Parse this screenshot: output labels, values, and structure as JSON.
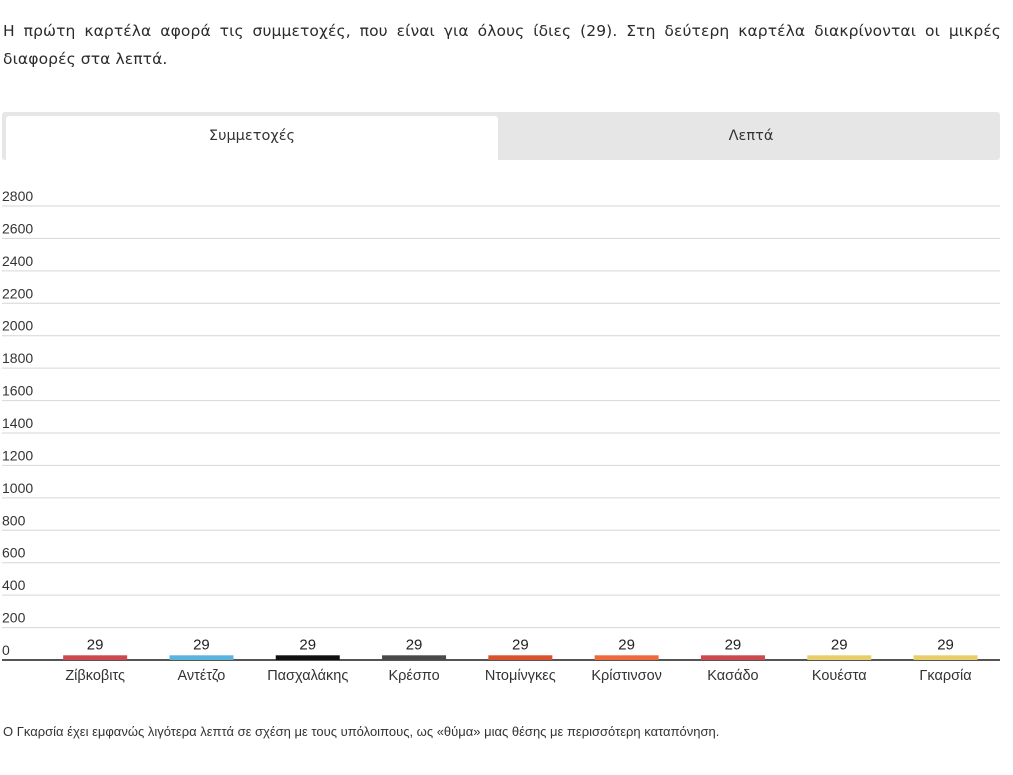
{
  "intro_text": "Η πρώτη καρτέλα αφορά τις συμμετοχές, που είναι για όλους ίδιες (29). Στη δεύτερη καρτέλα διακρίνονται οι μικρές διαφορές στα λεπτά.",
  "tabs": [
    {
      "label": "Συμμετοχές",
      "active": true
    },
    {
      "label": "Λεπτά",
      "active": false
    }
  ],
  "footer_text": "Ο Γκαρσία έχει εμφανώς λιγότερα λεπτά σε σχέση με τους υπόλοιπους, ως «θύμα» μιας θέσης με περισσότερη καταπόνηση.",
  "chart_data": {
    "type": "bar",
    "title": "",
    "xlabel": "",
    "ylabel": "",
    "ylim": [
      0,
      2800
    ],
    "yticks": [
      0,
      200,
      400,
      600,
      800,
      1000,
      1200,
      1400,
      1600,
      1800,
      2000,
      2200,
      2400,
      2600,
      2800
    ],
    "grid": true,
    "categories": [
      "Ζίβκοβιτς",
      "Αντέτζο",
      "Πασχαλάκης",
      "Κρέσπο",
      "Ντομίνγκες",
      "Κρίστινσον",
      "Κασάδο",
      "Κουέστα",
      "Γκαρσία"
    ],
    "values": [
      29,
      29,
      29,
      29,
      29,
      29,
      29,
      29,
      29
    ],
    "colors": [
      "#cc4a4e",
      "#5ab4de",
      "#111111",
      "#4a4a4a",
      "#d9522b",
      "#ee6a3c",
      "#cc4a4e",
      "#e8ce6a",
      "#e8ce6a"
    ]
  }
}
